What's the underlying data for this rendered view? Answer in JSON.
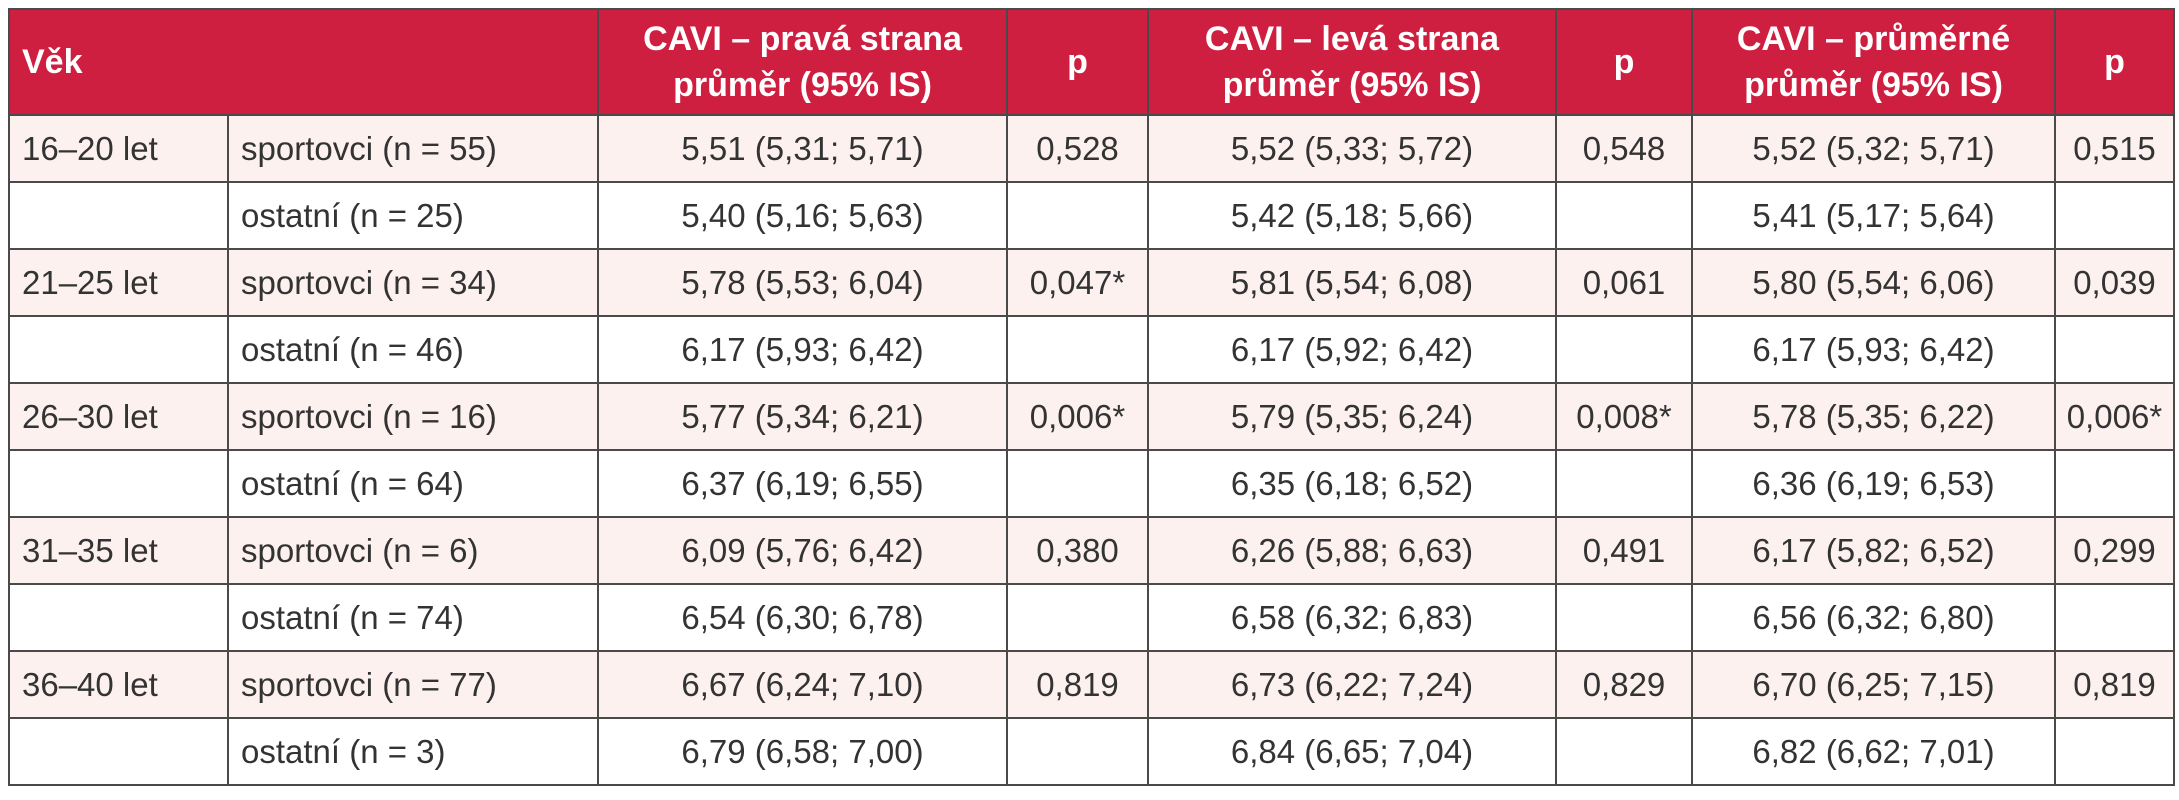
{
  "header": {
    "age": "Věk",
    "right": [
      "CAVI – pravá strana",
      "průměr (95% IS)"
    ],
    "p1": "p",
    "left": [
      "CAVI – levá strana",
      "průměr (95% IS)"
    ],
    "p2": "p",
    "avg": [
      "CAVI – průměrné",
      "průměr (95% IS)"
    ],
    "p3": "p"
  },
  "rows": [
    {
      "age": "16–20 let",
      "group": "sportovci (n = 55)",
      "right": "5,51 (5,31; 5,71)",
      "p1": "0,528",
      "left": "5,52 (5,33; 5,72)",
      "p2": "0,548",
      "avg": "5,52 (5,32; 5,71)",
      "p3": "0,515"
    },
    {
      "age": "",
      "group": "ostatní (n = 25)",
      "right": "5,40 (5,16; 5,63)",
      "p1": "",
      "left": "5,42 (5,18; 5,66)",
      "p2": "",
      "avg": "5,41 (5,17; 5,64)",
      "p3": ""
    },
    {
      "age": "21–25 let",
      "group": "sportovci (n = 34)",
      "right": "5,78 (5,53; 6,04)",
      "p1": "0,047*",
      "left": "5,81 (5,54; 6,08)",
      "p2": "0,061",
      "avg": "5,80 (5,54; 6,06)",
      "p3": "0,039"
    },
    {
      "age": "",
      "group": "ostatní (n = 46)",
      "right": "6,17 (5,93; 6,42)",
      "p1": "",
      "left": "6,17 (5,92; 6,42)",
      "p2": "",
      "avg": "6,17 (5,93; 6,42)",
      "p3": ""
    },
    {
      "age": "26–30 let",
      "group": "sportovci (n = 16)",
      "right": "5,77 (5,34; 6,21)",
      "p1": "0,006*",
      "left": "5,79 (5,35; 6,24)",
      "p2": "0,008*",
      "avg": "5,78 (5,35; 6,22)",
      "p3": "0,006*"
    },
    {
      "age": "",
      "group": "ostatní (n = 64)",
      "right": "6,37 (6,19; 6,55)",
      "p1": "",
      "left": "6,35 (6,18; 6,52)",
      "p2": "",
      "avg": "6,36 (6,19; 6,53)",
      "p3": ""
    },
    {
      "age": "31–35 let",
      "group": "sportovci (n = 6)",
      "right": "6,09 (5,76; 6,42)",
      "p1": "0,380",
      "left": "6,26 (5,88; 6,63)",
      "p2": "0,491",
      "avg": "6,17 (5,82; 6,52)",
      "p3": "0,299"
    },
    {
      "age": "",
      "group": "ostatní (n = 74)",
      "right": "6,54 (6,30; 6,78)",
      "p1": "",
      "left": "6,58 (6,32; 6,83)",
      "p2": "",
      "avg": "6,56 (6,32; 6,80)",
      "p3": ""
    },
    {
      "age": "36–40 let",
      "group": "sportovci (n = 77)",
      "right": "6,67 (6,24; 7,10)",
      "p1": "0,819",
      "left": "6,73 (6,22; 7,24)",
      "p2": "0,829",
      "avg": "6,70 (6,25; 7,15)",
      "p3": "0,819"
    },
    {
      "age": "",
      "group": "ostatní (n = 3)",
      "right": "6,79 (6,58; 7,00)",
      "p1": "",
      "left": "6,84 (6,65; 7,04)",
      "p2": "",
      "avg": "6,82 (6,62; 7,01)",
      "p3": ""
    }
  ],
  "colors": {
    "header_bg": "#cf1f40",
    "header_text": "#ffffff",
    "stripe_bg": "#fcf1ef",
    "border": "#4a4a4a"
  }
}
